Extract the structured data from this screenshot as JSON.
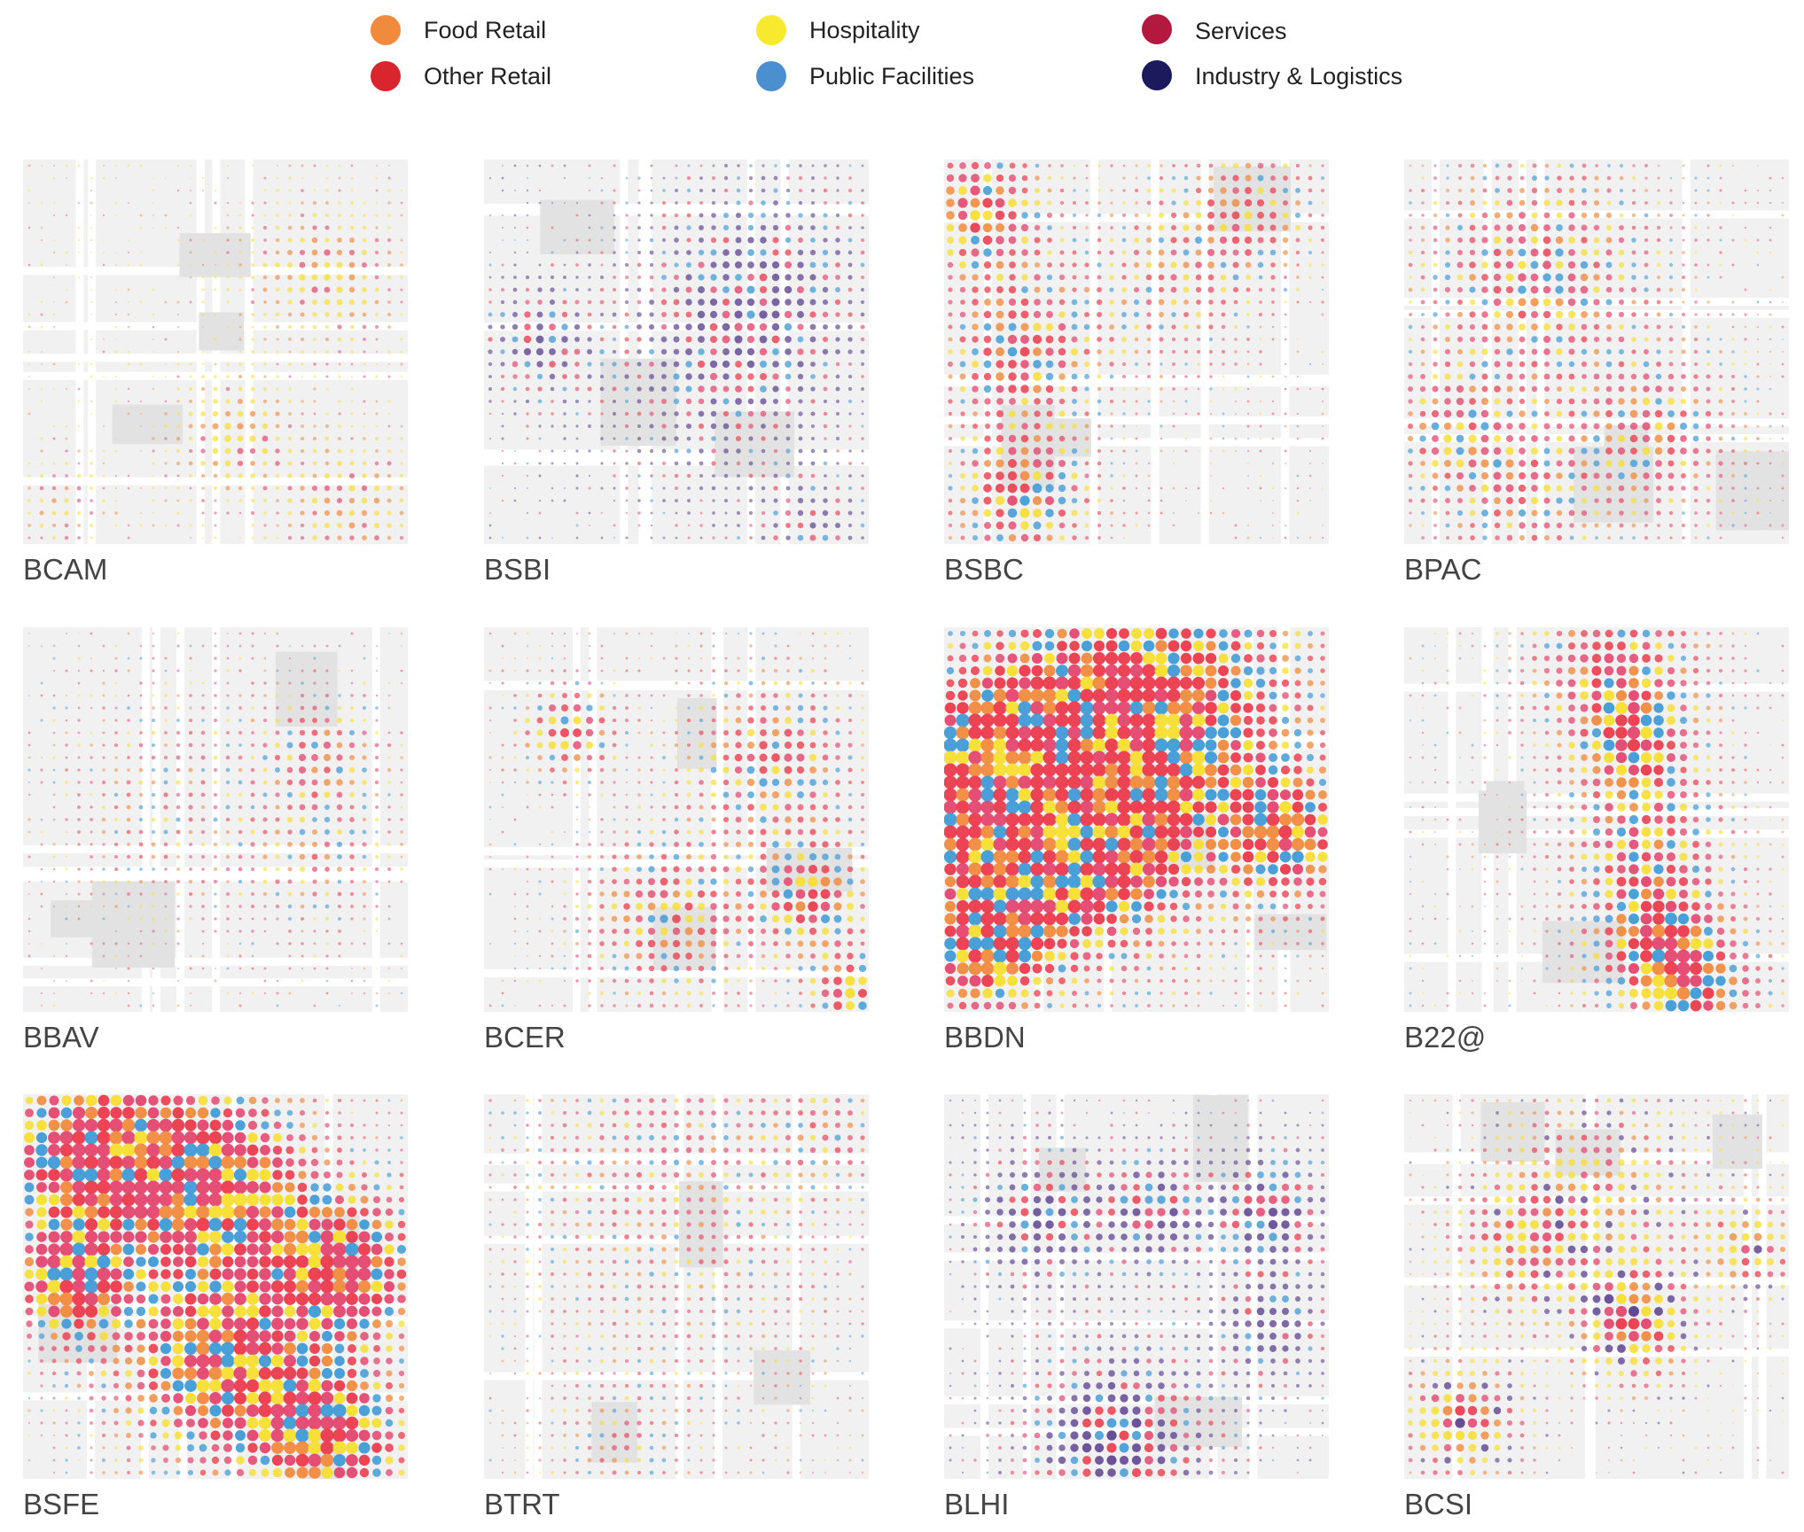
{
  "legend": {
    "items": [
      {
        "label": "Food Retail",
        "color": "#f08a3c",
        "icon": "food-retail-dot"
      },
      {
        "label": "Other Retail",
        "color": "#d9262e",
        "icon": "other-retail-dot"
      },
      {
        "label": "Hospitality",
        "color": "#f7ea2e",
        "icon": "hospitality-dot"
      },
      {
        "label": "Public Facilities",
        "color": "#4b8fd0",
        "icon": "public-facilities-dot"
      },
      {
        "label": "Services",
        "color": "#b3183e",
        "icon": "services-dot"
      },
      {
        "label": "Industry & Logistics",
        "color": "#1b1a5c",
        "icon": "industry-logistics-dot"
      }
    ]
  },
  "panels": [
    {
      "label": "BCAM",
      "dominant": "hospitality",
      "density": "sparse"
    },
    {
      "label": "BSBI",
      "dominant": "industry",
      "density": "sparse"
    },
    {
      "label": "BSBC",
      "dominant": "other-retail",
      "density": "medium"
    },
    {
      "label": "BPAC",
      "dominant": "services",
      "density": "medium"
    },
    {
      "label": "BBAV",
      "dominant": "services",
      "density": "sparse"
    },
    {
      "label": "BCER",
      "dominant": "other-retail",
      "density": "medium"
    },
    {
      "label": "BBDN",
      "dominant": "other-retail",
      "density": "dense"
    },
    {
      "label": "B22@",
      "dominant": "services",
      "density": "medium"
    },
    {
      "label": "BSFE",
      "dominant": "services",
      "density": "dense"
    },
    {
      "label": "BTRT",
      "dominant": "services",
      "density": "sparse"
    },
    {
      "label": "BLHI",
      "dominant": "industry",
      "density": "medium"
    },
    {
      "label": "BCSI",
      "dominant": "food-retail",
      "density": "medium"
    }
  ]
}
